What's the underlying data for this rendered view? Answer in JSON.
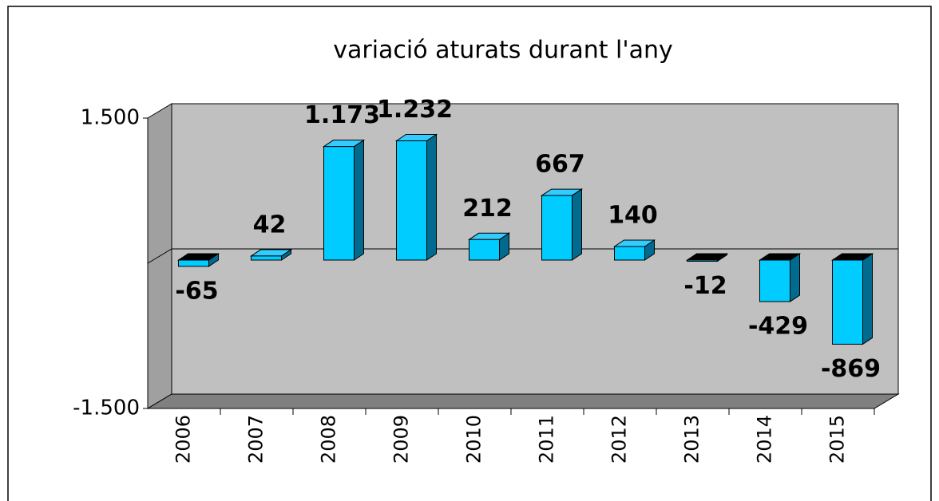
{
  "chart_data": {
    "type": "bar3d",
    "title": "variació aturats durant l'any",
    "categories": [
      "2006",
      "2007",
      "2008",
      "2009",
      "2010",
      "2011",
      "2012",
      "2013",
      "2014",
      "2015"
    ],
    "values": [
      -65,
      42,
      1173,
      1232,
      212,
      667,
      140,
      -12,
      -429,
      -869
    ],
    "value_labels": [
      "-65",
      "42",
      "1.173",
      "1.232",
      "212",
      "667",
      "140",
      "-12",
      "-429",
      "-869"
    ],
    "color": "#00ccff",
    "ylim": [
      -1500,
      1500
    ],
    "yticks": [
      {
        "value": -1500,
        "label": "-1.500"
      },
      {
        "value": 1500,
        "label": "1.500"
      }
    ]
  }
}
